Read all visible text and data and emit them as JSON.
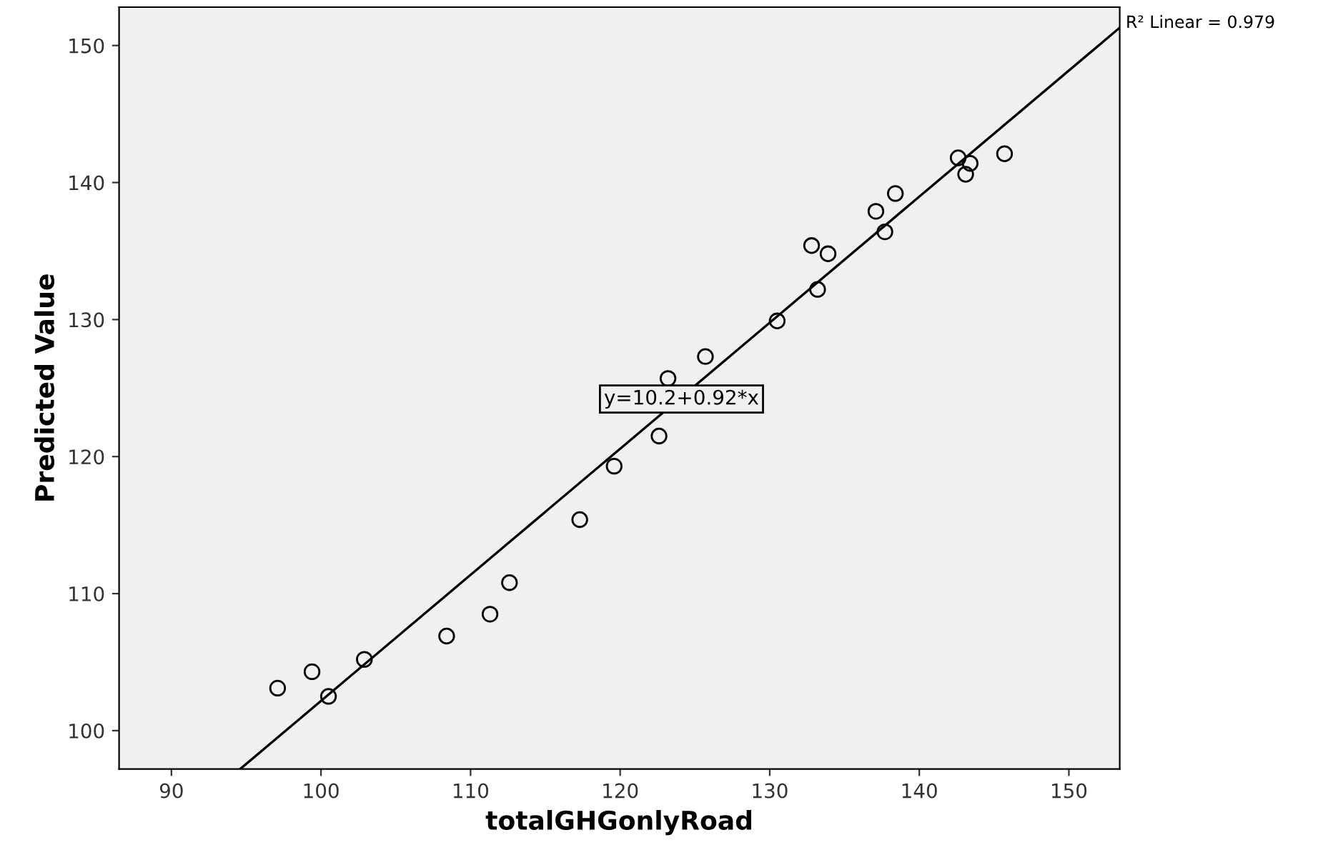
{
  "chart_data": {
    "type": "scatter",
    "xlabel": "totalGHGonlyRoad",
    "ylabel": "Predicted Value",
    "xlim": [
      86.5,
      153.4
    ],
    "ylim": [
      97.2,
      152.8
    ],
    "xticks": [
      90,
      100,
      110,
      120,
      130,
      140,
      150
    ],
    "yticks": [
      100,
      110,
      120,
      130,
      140,
      150
    ],
    "marker": "circle",
    "series": [
      {
        "color": "#000000",
        "x": [
          97.1,
          99.4,
          100.5,
          102.9,
          108.4,
          111.3,
          112.6,
          117.3,
          119.6,
          122.6,
          123.2,
          125.7,
          130.5,
          133.2,
          132.8,
          133.9,
          137.7,
          137.1,
          138.4,
          142.6,
          143.4,
          143.1,
          145.7
        ],
        "values": [
          103.1,
          104.3,
          102.5,
          105.2,
          106.9,
          108.5,
          110.8,
          115.4,
          119.3,
          121.5,
          125.7,
          127.3,
          129.9,
          132.2,
          135.4,
          134.8,
          136.4,
          137.9,
          139.2,
          141.8,
          141.4,
          140.6,
          142.1
        ]
      },
      {
        "type": "line",
        "color": "#000000",
        "marker": "none",
        "x": [
          94.6,
          153.4
        ],
        "values": [
          97.2,
          151.3
        ]
      }
    ],
    "annotations": [
      {
        "text": "y=10.2+0.92*x",
        "x": 124.1,
        "y": 124.2
      },
      "R² Linear = 0.979"
    ]
  }
}
